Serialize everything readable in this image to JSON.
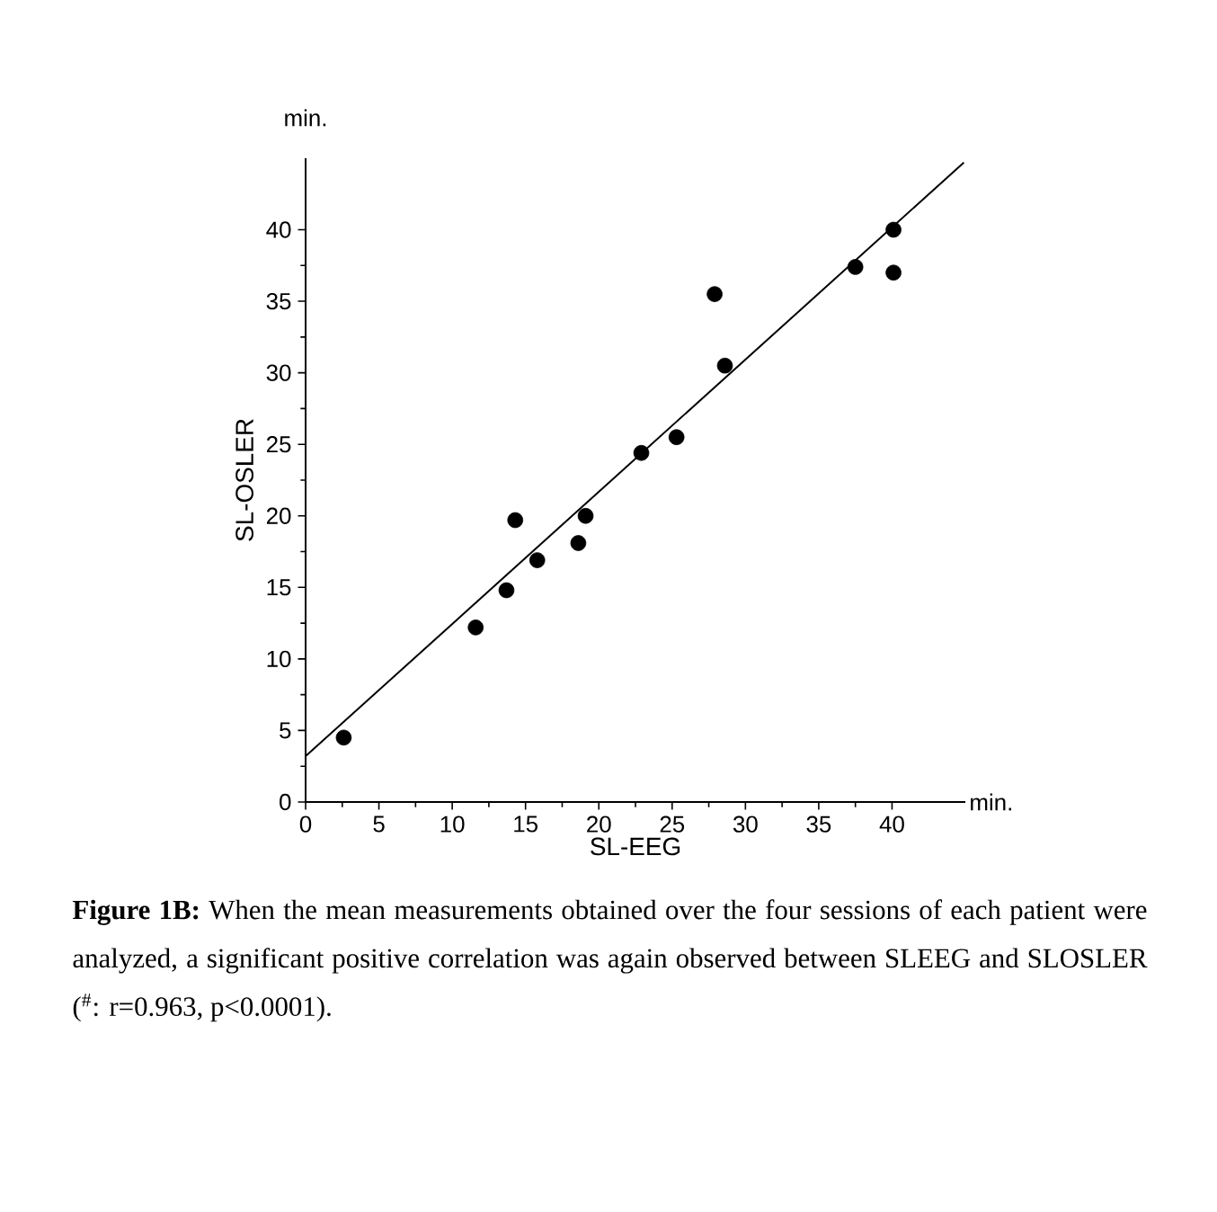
{
  "chart_data": {
    "type": "scatter",
    "xlabel": "SL-EEG",
    "ylabel": "SL-OSLER",
    "annotations": [
      "min.",
      "min.",
      "**Figure 1B:** When the mean measurements obtained over the four sessions of each patient were analyzed, a significant positive correlation was again observed between SLEEG and SLOSLER ($^{#}$: r=0.963, p<0.0001)."
    ],
    "xlim": [
      0,
      45
    ],
    "ylim": [
      0,
      45
    ],
    "xticks": [
      0,
      5,
      10,
      15,
      20,
      25,
      30,
      35,
      40
    ],
    "yticks": [
      0,
      5,
      10,
      15,
      20,
      25,
      30,
      35,
      40
    ],
    "series": [
      {
        "color": "#000000",
        "marker": "circle",
        "x": [
          2.6,
          11.6,
          13.7,
          14.3,
          15.8,
          18.6,
          19.1,
          22.9,
          25.3,
          27.9,
          28.6,
          37.5,
          40.1,
          40.1
        ],
        "values": [
          4.5,
          12.2,
          14.8,
          19.7,
          16.9,
          18.1,
          20.0,
          24.4,
          25.5,
          35.5,
          30.5,
          37.4,
          40.0,
          37.0
        ]
      },
      {
        "type": "line",
        "color": "#000000",
        "marker": "none",
        "line_style": "solid",
        "x": [
          0,
          44.9
        ],
        "values": [
          3.2,
          44.7
        ]
      }
    ]
  }
}
